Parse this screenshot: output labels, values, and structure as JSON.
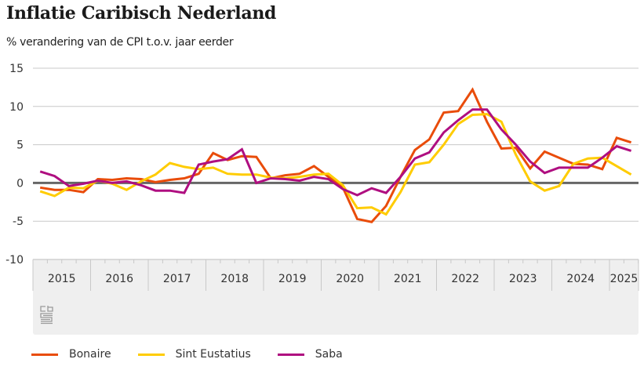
{
  "chart_data": {
    "type": "line",
    "title": "Inflatie Caribisch Nederland",
    "subtitle": "% verandering van de CPI t.o.v. jaar eerder",
    "xlabel": "",
    "ylabel": "",
    "ylim": [
      -10,
      15
    ],
    "yticks": [
      15,
      10,
      5,
      0,
      -5,
      -10
    ],
    "grid": true,
    "legend_position": "bottom-left",
    "x_categories": [
      "2015",
      "2016",
      "2017",
      "2018",
      "2019",
      "2020",
      "2021",
      "2022",
      "2023",
      "2024",
      "2025"
    ],
    "x_period": "quarter",
    "x_start": "2015 Q1",
    "series": [
      {
        "name": "Bonaire",
        "color": "#e94c0a",
        "values": [
          -0.6,
          -0.9,
          -0.9,
          -1.2,
          0.5,
          0.4,
          0.6,
          0.5,
          0.1,
          0.4,
          0.6,
          1.2,
          3.9,
          3.0,
          3.5,
          3.4,
          0.6,
          1.0,
          1.2,
          2.2,
          0.8,
          -0.6,
          -4.7,
          -5.1,
          -3.0,
          0.8,
          4.3,
          5.7,
          9.2,
          9.4,
          12.2,
          8.0,
          4.5,
          4.6,
          1.9,
          4.1,
          3.3,
          2.5,
          2.4,
          1.8,
          5.9,
          5.3
        ]
      },
      {
        "name": "Sint Eustatius",
        "color": "#ffcc00",
        "values": [
          -1.1,
          -1.7,
          -0.6,
          -0.7,
          0.3,
          -0.1,
          -0.9,
          0.2,
          1.1,
          2.6,
          2.1,
          1.8,
          2.0,
          1.2,
          1.1,
          1.1,
          0.7,
          0.6,
          0.8,
          1.1,
          1.2,
          -0.3,
          -3.3,
          -3.2,
          -4.1,
          -1.2,
          2.4,
          2.7,
          5.0,
          7.7,
          8.9,
          9.0,
          8.0,
          3.7,
          0.2,
          -1.0,
          -0.4,
          2.5,
          3.2,
          3.3,
          2.2,
          1.1
        ]
      },
      {
        "name": "Saba",
        "color": "#af0e80",
        "values": [
          1.5,
          0.9,
          -0.4,
          -0.1,
          0.3,
          0.0,
          0.2,
          -0.3,
          -1.0,
          -1.0,
          -1.3,
          2.4,
          2.8,
          3.1,
          4.4,
          0.0,
          0.6,
          0.5,
          0.3,
          0.8,
          0.5,
          -0.8,
          -1.6,
          -0.7,
          -1.3,
          0.8,
          3.2,
          4.0,
          6.6,
          8.2,
          9.6,
          9.6,
          7.0,
          5.0,
          2.8,
          1.3,
          2.0,
          2.0,
          2.0,
          3.3,
          4.8,
          4.2
        ]
      }
    ]
  },
  "logo": {
    "name": "cbs-logo"
  }
}
